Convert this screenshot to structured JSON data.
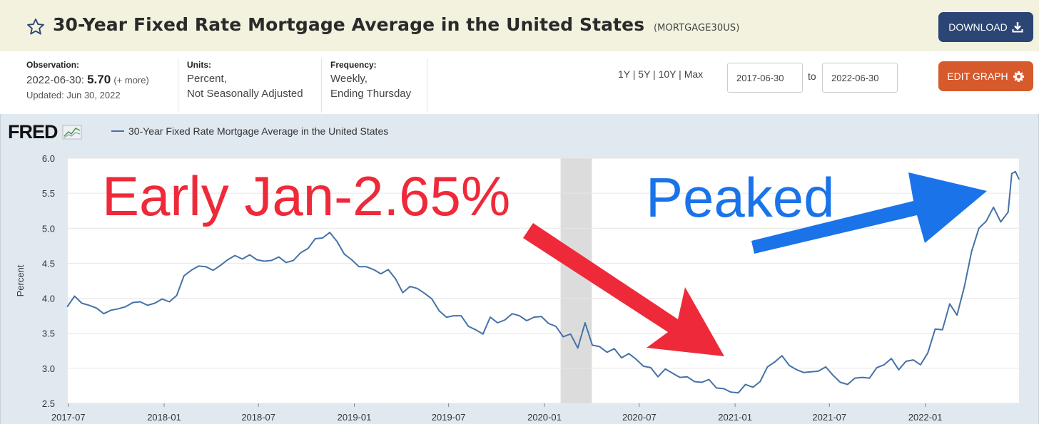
{
  "header": {
    "title": "30-Year Fixed Rate Mortgage Average in the United States",
    "series_id": "(MORTGAGE30US)",
    "download_label": "DOWNLOAD"
  },
  "meta": {
    "observation_label": "Observation:",
    "observation_date": "2022-06-30:",
    "observation_value": "5.70",
    "observation_more": "(+ more)",
    "updated": "Updated: Jun 30, 2022",
    "units_label": "Units:",
    "units_line1": "Percent,",
    "units_line2": "Not Seasonally Adjusted",
    "frequency_label": "Frequency:",
    "frequency_line1": "Weekly,",
    "frequency_line2": "Ending Thursday"
  },
  "controls": {
    "ranges": [
      "1Y",
      "5Y",
      "10Y",
      "Max"
    ],
    "date_from": "2017-06-30",
    "to_label": "to",
    "date_to": "2022-06-30",
    "edit_label": "EDIT GRAPH"
  },
  "legend": {
    "logo": "FRED",
    "series_name": "30-Year Fixed Rate Mortgage Average in the United States"
  },
  "annotations": {
    "left_text": "Early Jan-2.65%",
    "right_text": "Peaked",
    "left_color": "#ee2a3a",
    "right_color": "#1a73e8"
  },
  "colors": {
    "series": "#4572a7",
    "download_bg": "#2b4574",
    "edit_bg": "#d65a2c",
    "recession": "#dcdcdc"
  },
  "chart_data": {
    "type": "line",
    "title": "30-Year Fixed Rate Mortgage Average in the United States",
    "ylabel": "Percent",
    "xlabel": "",
    "ylim": [
      2.5,
      6.0
    ],
    "xlim": [
      "2017-06-30",
      "2022-06-30"
    ],
    "y_ticks": [
      "2.5",
      "3.0",
      "3.5",
      "4.0",
      "4.5",
      "5.0",
      "5.5",
      "6.0"
    ],
    "x_ticks": [
      "2017-07",
      "2018-01",
      "2018-07",
      "2019-01",
      "2019-07",
      "2020-01",
      "2020-07",
      "2021-01",
      "2021-07",
      "2022-01"
    ],
    "recession": [
      "2020-02-01",
      "2020-04-01"
    ],
    "grid": true,
    "series": [
      {
        "name": "30-Year Fixed Rate Mortgage Average in the United States",
        "x": [
          "2017-06-29",
          "2017-07-13",
          "2017-07-27",
          "2017-08-10",
          "2017-08-24",
          "2017-09-07",
          "2017-09-21",
          "2017-10-05",
          "2017-10-19",
          "2017-11-02",
          "2017-11-16",
          "2017-11-30",
          "2017-12-14",
          "2017-12-28",
          "2018-01-11",
          "2018-01-25",
          "2018-02-08",
          "2018-02-22",
          "2018-03-08",
          "2018-03-22",
          "2018-04-05",
          "2018-04-19",
          "2018-05-03",
          "2018-05-17",
          "2018-05-31",
          "2018-06-14",
          "2018-06-28",
          "2018-07-12",
          "2018-07-26",
          "2018-08-09",
          "2018-08-23",
          "2018-09-06",
          "2018-09-20",
          "2018-10-04",
          "2018-10-18",
          "2018-11-01",
          "2018-11-15",
          "2018-11-29",
          "2018-12-13",
          "2018-12-27",
          "2019-01-10",
          "2019-01-24",
          "2019-02-07",
          "2019-02-21",
          "2019-03-07",
          "2019-03-21",
          "2019-04-04",
          "2019-04-18",
          "2019-05-02",
          "2019-05-16",
          "2019-05-30",
          "2019-06-13",
          "2019-06-27",
          "2019-07-11",
          "2019-07-25",
          "2019-08-08",
          "2019-08-22",
          "2019-09-05",
          "2019-09-19",
          "2019-10-03",
          "2019-10-17",
          "2019-10-31",
          "2019-11-14",
          "2019-11-28",
          "2019-12-12",
          "2019-12-26",
          "2020-01-09",
          "2020-01-23",
          "2020-02-06",
          "2020-02-20",
          "2020-03-05",
          "2020-03-19",
          "2020-04-02",
          "2020-04-16",
          "2020-04-30",
          "2020-05-14",
          "2020-05-28",
          "2020-06-11",
          "2020-06-25",
          "2020-07-09",
          "2020-07-23",
          "2020-08-06",
          "2020-08-20",
          "2020-09-03",
          "2020-09-17",
          "2020-10-01",
          "2020-10-15",
          "2020-10-29",
          "2020-11-12",
          "2020-11-26",
          "2020-12-10",
          "2020-12-24",
          "2021-01-07",
          "2021-01-21",
          "2021-02-04",
          "2021-02-18",
          "2021-03-04",
          "2021-03-18",
          "2021-04-01",
          "2021-04-15",
          "2021-04-29",
          "2021-05-13",
          "2021-05-27",
          "2021-06-10",
          "2021-06-24",
          "2021-07-08",
          "2021-07-22",
          "2021-08-05",
          "2021-08-19",
          "2021-09-02",
          "2021-09-16",
          "2021-09-30",
          "2021-10-14",
          "2021-10-28",
          "2021-11-11",
          "2021-11-25",
          "2021-12-09",
          "2021-12-23",
          "2022-01-06",
          "2022-01-20",
          "2022-02-03",
          "2022-02-17",
          "2022-03-03",
          "2022-03-17",
          "2022-03-31",
          "2022-04-14",
          "2022-04-28",
          "2022-05-12",
          "2022-05-26",
          "2022-06-09",
          "2022-06-16",
          "2022-06-23",
          "2022-06-30"
        ],
        "values": [
          3.88,
          4.03,
          3.93,
          3.9,
          3.86,
          3.78,
          3.83,
          3.85,
          3.88,
          3.94,
          3.95,
          3.9,
          3.93,
          3.99,
          3.95,
          4.04,
          4.32,
          4.4,
          4.46,
          4.45,
          4.4,
          4.47,
          4.55,
          4.61,
          4.56,
          4.62,
          4.55,
          4.53,
          4.54,
          4.59,
          4.51,
          4.54,
          4.65,
          4.71,
          4.85,
          4.86,
          4.94,
          4.81,
          4.63,
          4.55,
          4.45,
          4.45,
          4.41,
          4.35,
          4.41,
          4.28,
          4.08,
          4.17,
          4.14,
          4.07,
          3.99,
          3.82,
          3.73,
          3.75,
          3.75,
          3.6,
          3.55,
          3.49,
          3.73,
          3.65,
          3.69,
          3.78,
          3.75,
          3.68,
          3.73,
          3.74,
          3.64,
          3.6,
          3.45,
          3.49,
          3.29,
          3.65,
          3.33,
          3.31,
          3.23,
          3.28,
          3.15,
          3.21,
          3.13,
          3.03,
          3.01,
          2.88,
          2.99,
          2.93,
          2.87,
          2.88,
          2.81,
          2.8,
          2.84,
          2.72,
          2.71,
          2.66,
          2.65,
          2.77,
          2.73,
          2.81,
          3.02,
          3.09,
          3.18,
          3.04,
          2.98,
          2.94,
          2.95,
          2.96,
          3.02,
          2.9,
          2.8,
          2.77,
          2.86,
          2.87,
          2.86,
          3.01,
          3.05,
          3.14,
          2.98,
          3.1,
          3.12,
          3.05,
          3.22,
          3.56,
          3.55,
          3.92,
          3.76,
          4.16,
          4.67,
          5.0,
          5.1,
          5.3,
          5.09,
          5.23,
          5.78,
          5.81,
          5.7
        ]
      }
    ]
  }
}
